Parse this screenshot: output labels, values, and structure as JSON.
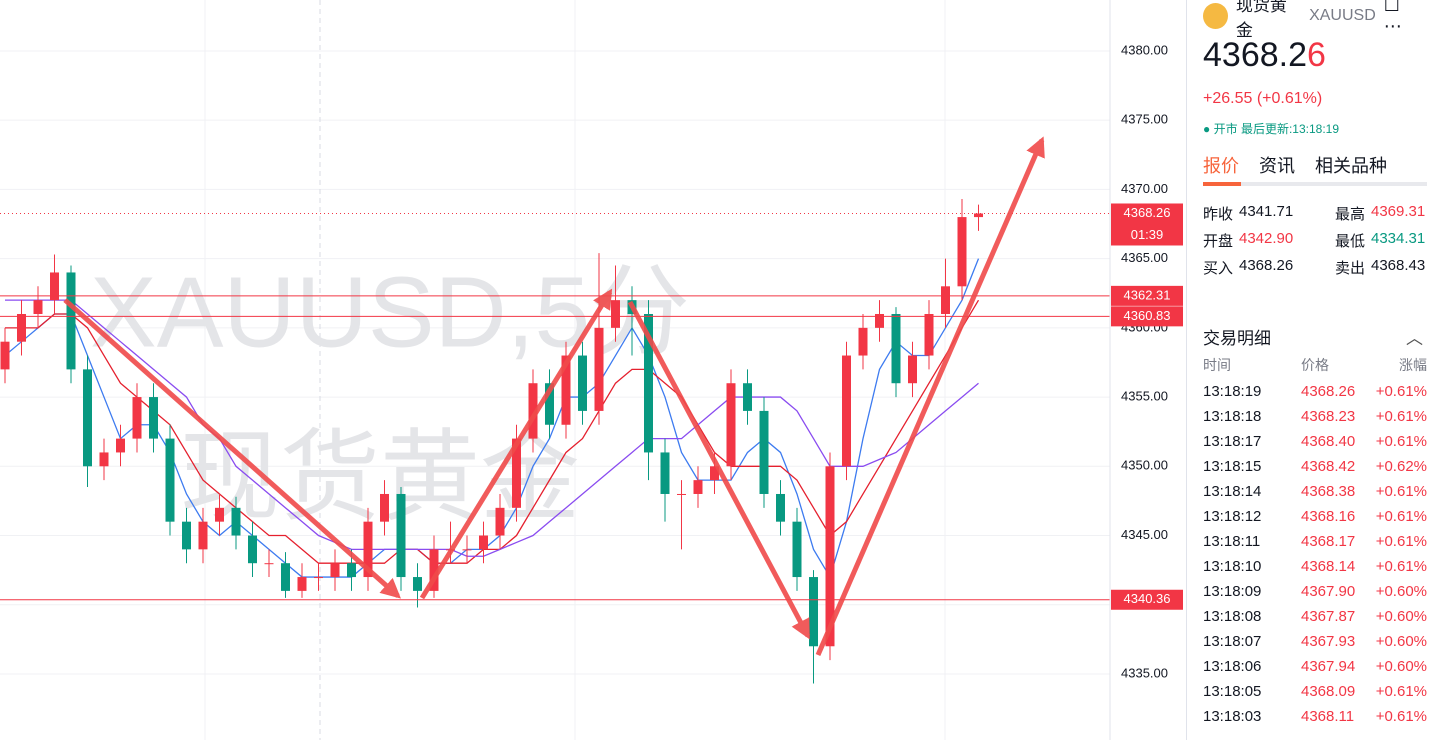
{
  "chart_data": {
    "type": "candlestick",
    "watermark": [
      "XAUUSD,5分",
      "现货黄金"
    ],
    "open": [
      4357,
      4359,
      4361,
      4362,
      4364,
      4357,
      4350,
      4351,
      4352,
      4355,
      4352,
      4346,
      4344,
      4346,
      4347,
      4345,
      4343,
      4343,
      4341,
      4342,
      4342,
      4343,
      4342,
      4346,
      4348,
      4342,
      4341,
      4344,
      4344,
      4344,
      4345,
      4347,
      4352,
      4356,
      4353,
      4358,
      4354,
      4360,
      4362,
      4361,
      4351,
      4348,
      4348,
      4349,
      4350,
      4356,
      4354,
      4348,
      4346,
      4342,
      4337,
      4350,
      4358,
      4360,
      4361,
      4356,
      4358,
      4361,
      4363,
      4368
    ],
    "high": [
      4360,
      4362,
      4363,
      4365.3,
      4364.5,
      4358,
      4352,
      4353,
      4356,
      4356,
      4353,
      4347,
      4347,
      4348,
      4347.8,
      4346,
      4344,
      4343.8,
      4343,
      4343,
      4344,
      4344,
      4347,
      4349,
      4348.5,
      4343,
      4345,
      4346,
      4345,
      4346,
      4348,
      4353,
      4357,
      4357,
      4359,
      4359,
      4365.4,
      4364.5,
      4363,
      4362,
      4352,
      4349,
      4350,
      4351,
      4357,
      4357,
      4355,
      4349,
      4347,
      4342.5,
      4351,
      4359,
      4361,
      4362,
      4361.5,
      4359,
      4362,
      4365,
      4369.31,
      4368.9
    ],
    "low": [
      4356,
      4358,
      4360,
      4361,
      4356,
      4348.5,
      4349,
      4350,
      4351,
      4351,
      4345,
      4343,
      4343,
      4345,
      4344,
      4342,
      4342,
      4340.5,
      4340.5,
      4341,
      4341,
      4341,
      4341,
      4345,
      4341,
      4339.8,
      4340.5,
      4343,
      4343,
      4343,
      4344,
      4346,
      4351,
      4352,
      4352,
      4353,
      4353,
      4359,
      4358,
      4349,
      4346,
      4344,
      4347,
      4348,
      4349,
      4353,
      4347,
      4345,
      4341,
      4334.31,
      4336,
      4349,
      4357,
      4359,
      4355,
      4355,
      4357,
      4360,
      4362,
      4367
    ],
    "close": [
      4359,
      4361,
      4362,
      4364,
      4357,
      4350,
      4351,
      4352,
      4355,
      4352,
      4346,
      4344,
      4346,
      4347,
      4345,
      4343,
      4343,
      4341,
      4342,
      4342,
      4343,
      4342,
      4346,
      4348,
      4342,
      4341,
      4344,
      4344,
      4344,
      4345,
      4347,
      4352,
      4356,
      4353,
      4358,
      4354,
      4360,
      4362,
      4361,
      4351,
      4348,
      4348,
      4349,
      4350,
      4356,
      4354,
      4348,
      4346,
      4342,
      4337,
      4350,
      4358,
      4360,
      4361,
      4356,
      4358,
      4361,
      4363,
      4368,
      4368.26
    ],
    "up_color": "#f23645",
    "down_color": "#089981",
    "ma": [
      {
        "color": "#3d7bf0",
        "values": [
          4358,
          4359,
          4360,
          4361,
          4361,
          4358,
          4355,
          4352,
          4353,
          4353,
          4351,
          4348,
          4346,
          4345,
          4346,
          4345,
          4344,
          4343,
          4342,
          4342,
          4342,
          4342,
          4343,
          4344,
          4344,
          4344,
          4343,
          4343,
          4344,
          4344,
          4345,
          4347,
          4350,
          4352,
          4355,
          4355,
          4356,
          4358,
          4360,
          4358,
          4355,
          4351,
          4349,
          4349,
          4349,
          4351,
          4352,
          4351,
          4348,
          4344,
          4342,
          4346,
          4352,
          4357,
          4359,
          4358,
          4358,
          4360,
          4362,
          4365
        ]
      },
      {
        "color": "#e5202e",
        "values": [
          4360,
          4360,
          4360,
          4361,
          4361,
          4360,
          4358,
          4356,
          4355,
          4354,
          4353,
          4351,
          4349,
          4348,
          4347,
          4346,
          4345,
          4345,
          4344,
          4343,
          4343,
          4343,
          4343,
          4343,
          4344,
          4344,
          4343,
          4343,
          4343,
          4344,
          4344,
          4345,
          4347,
          4349,
          4351,
          4352,
          4354,
          4356,
          4357,
          4357,
          4356,
          4355,
          4353,
          4351,
          4350,
          4350,
          4350,
          4350,
          4349,
          4347,
          4345,
          4346,
          4348,
          4350,
          4352,
          4354,
          4356,
          4358,
          4360,
          4362
        ]
      },
      {
        "color": "#8a4cf0",
        "values": [
          4362,
          4362,
          4362,
          4362,
          4362,
          4361,
          4360,
          4359,
          4358,
          4357,
          4356,
          4355,
          4353,
          4352,
          4350,
          4349,
          4348,
          4347,
          4346,
          4345,
          4344.5,
          4344,
          4344,
          4344,
          4344,
          4344,
          4344,
          4344,
          4343.5,
          4343.5,
          4344,
          4344.5,
          4345,
          4346,
          4347,
          4348,
          4349,
          4350,
          4351,
          4352,
          4352,
          4352,
          4353,
          4354,
          4355,
          4355,
          4355,
          4355,
          4354,
          4352,
          4350,
          4350,
          4350,
          4350.5,
          4351,
          4352,
          4353,
          4354,
          4355,
          4356
        ]
      }
    ],
    "ylim": [
      4330.23,
      4383.68
    ],
    "yticks": [
      {
        "value": 4335,
        "label": "4335.00"
      },
      {
        "value": 4340,
        "label": "4340.00"
      },
      {
        "value": 4345,
        "label": "4345.00"
      },
      {
        "value": 4350,
        "label": "4350.00"
      },
      {
        "value": 4355,
        "label": "4355.00"
      },
      {
        "value": 4360,
        "label": "4360.00"
      },
      {
        "value": 4365,
        "label": "4365.00"
      },
      {
        "value": 4370,
        "label": "4370.00"
      },
      {
        "value": 4375,
        "label": "4375.00"
      },
      {
        "value": 4380,
        "label": "4380.00"
      }
    ],
    "grid": true,
    "last_price": 4368.26,
    "countdown": "01:39",
    "price_lines": [
      4362.31,
      4360.83,
      4340.36
    ]
  },
  "panel": {
    "name": "现货黄金",
    "symbol": "XAUUSD",
    "price": "4368.26",
    "change": "+26.55 (+0.61%)",
    "status": "开市",
    "updated": "最后更新:13:18:19",
    "tabs": [
      "报价",
      "资讯",
      "相关品种"
    ],
    "stats": [
      [
        "昨收",
        "4341.71",
        "最高",
        "4369.31"
      ],
      [
        "开盘",
        "4342.90",
        "最低",
        "4334.31"
      ],
      [
        "买入",
        "4368.26",
        "卖出",
        "4368.43"
      ]
    ],
    "trades_title": "交易明细",
    "trades_header": [
      "时间",
      "价格",
      "涨幅"
    ],
    "trades": [
      [
        "13:18:19",
        "4368.26",
        "+0.61%"
      ],
      [
        "13:18:18",
        "4368.23",
        "+0.61%"
      ],
      [
        "13:18:17",
        "4368.40",
        "+0.61%"
      ],
      [
        "13:18:15",
        "4368.42",
        "+0.62%"
      ],
      [
        "13:18:14",
        "4368.38",
        "+0.61%"
      ],
      [
        "13:18:12",
        "4368.16",
        "+0.61%"
      ],
      [
        "13:18:11",
        "4368.17",
        "+0.61%"
      ],
      [
        "13:18:10",
        "4368.14",
        "+0.61%"
      ],
      [
        "13:18:09",
        "4367.90",
        "+0.60%"
      ],
      [
        "13:18:08",
        "4367.87",
        "+0.60%"
      ],
      [
        "13:18:07",
        "4367.93",
        "+0.60%"
      ],
      [
        "13:18:06",
        "4367.94",
        "+0.60%"
      ],
      [
        "13:18:05",
        "4368.09",
        "+0.61%"
      ],
      [
        "13:18:03",
        "4368.11",
        "+0.61%"
      ]
    ]
  }
}
